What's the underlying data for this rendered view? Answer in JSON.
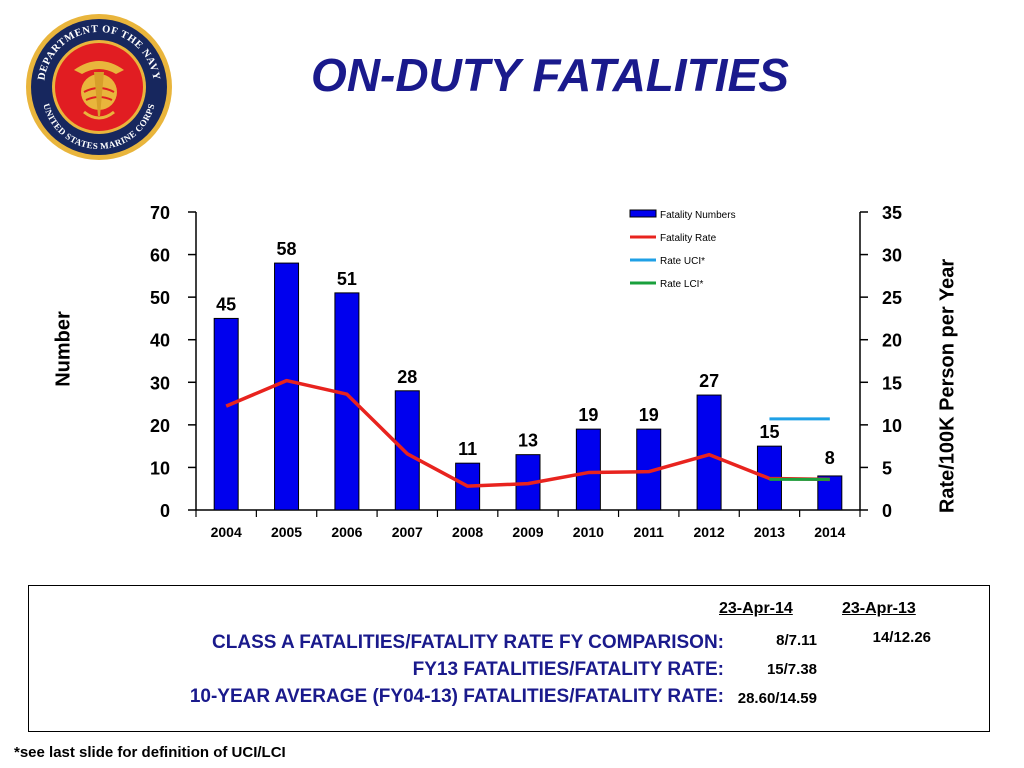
{
  "slide": {
    "title": "ON-DUTY  FATALITIES",
    "emblem_icon": "usmc-seal-icon",
    "emblem_text": "DEPARTMENT OF THE NAVY · UNITED STATES MARINE CORPS"
  },
  "chart_data": {
    "type": "bar",
    "categories": [
      "2004",
      "2005",
      "2006",
      "2007",
      "2008",
      "2009",
      "2010",
      "2011",
      "2012",
      "2013",
      "2014"
    ],
    "series": [
      {
        "name": "Fatality Numbers",
        "type": "bar",
        "axis": "left",
        "values": [
          45,
          58,
          51,
          28,
          11,
          13,
          19,
          19,
          27,
          15,
          8
        ],
        "color": "#0000ee"
      },
      {
        "name": "Fatality Rate",
        "type": "line",
        "axis": "right",
        "values": [
          12.2,
          15.2,
          13.6,
          6.6,
          2.8,
          3.1,
          4.4,
          4.5,
          6.5,
          3.7,
          3.6
        ],
        "color": "#e8231e"
      },
      {
        "name": "Rate UCI*",
        "type": "line",
        "axis": "right",
        "x": [
          "2013",
          "2014"
        ],
        "values": [
          10.7,
          10.7
        ],
        "color": "#1fa0e6"
      },
      {
        "name": "Rate LCI*",
        "type": "line",
        "axis": "right",
        "x": [
          "2013",
          "2014"
        ],
        "values": [
          3.6,
          3.6
        ],
        "color": "#1aa03c"
      }
    ],
    "data_labels": [
      "45",
      "58",
      "51",
      "28",
      "11",
      "13",
      "19",
      "19",
      "27",
      "15",
      "8"
    ],
    "y_left": {
      "label": "Number",
      "ylim": [
        0,
        70
      ],
      "ticks": [
        "0",
        "10",
        "20",
        "30",
        "40",
        "50",
        "60",
        "70"
      ]
    },
    "y_right": {
      "label": "Rate/100K Person per Year",
      "ylim": [
        0,
        35
      ],
      "ticks": [
        "0",
        "5",
        "10",
        "15",
        "20",
        "25",
        "30",
        "35"
      ]
    },
    "legend_position": "top-right",
    "grid": false
  },
  "comparison": {
    "col_headers": [
      "23-Apr-14",
      "23-Apr-13"
    ],
    "rows": [
      {
        "label": "CLASS A FATALITIES/FATALITY RATE FY COMPARISON:",
        "current": "8/7.11",
        "prior": "14/12.26"
      },
      {
        "label": "FY13 FATALITIES/FATALITY RATE:",
        "current": "15/7.38",
        "prior": ""
      },
      {
        "label": "10-YEAR AVERAGE (FY04-13) FATALITIES/FATALITY RATE:",
        "current": "28.60/14.59",
        "prior": ""
      }
    ]
  },
  "footnote": "*see last slide for definition of UCI/LCI"
}
